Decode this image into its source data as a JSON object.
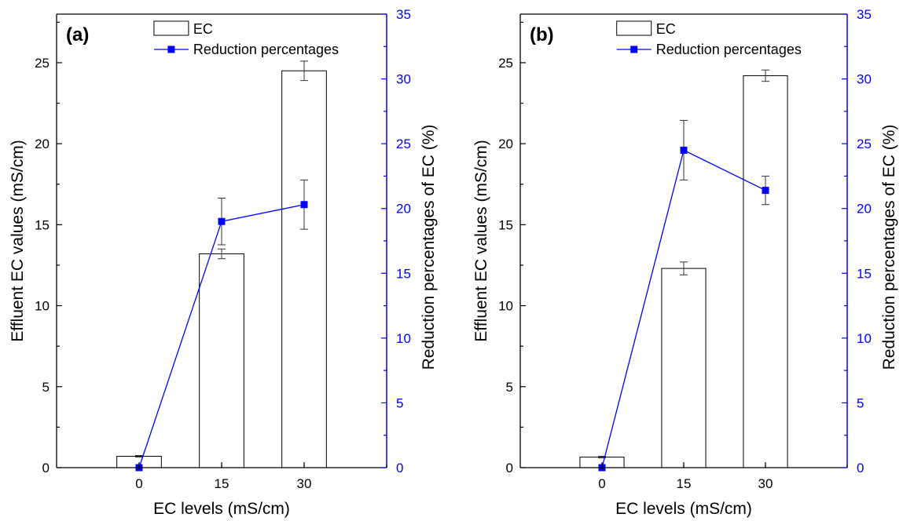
{
  "colors": {
    "axis": "#000000",
    "secondary_axis": "#0000ff",
    "bar_fill": "#ffffff",
    "bar_stroke": "#000000",
    "line": "#0000ff",
    "marker": "#0000ff"
  },
  "chart_data": [
    {
      "type": "bar",
      "panel_label": "(a)",
      "categories": [
        "0",
        "15",
        "30"
      ],
      "xlabel": "EC levels (mS/cm)",
      "ylabel": "Effluent EC values (mS/cm)",
      "y2label": "Reduction percentages of EC (%)",
      "ylim": [
        0,
        28
      ],
      "y2lim": [
        0,
        35
      ],
      "yticks": [
        0,
        5,
        10,
        15,
        20,
        25
      ],
      "y2ticks": [
        0,
        5,
        10,
        15,
        20,
        25,
        30,
        35
      ],
      "legend": [
        "EC",
        "Reduction percentages"
      ],
      "legend_position": "top-right",
      "series": [
        {
          "name": "EC",
          "type": "bar",
          "axis": "left",
          "values": [
            0.7,
            13.2,
            24.5
          ],
          "errors": [
            0.05,
            0.3,
            0.6
          ]
        },
        {
          "name": "Reduction percentages",
          "type": "line",
          "axis": "right",
          "values": [
            0,
            19.0,
            20.3
          ],
          "errors": [
            0,
            1.8,
            1.9
          ]
        }
      ]
    },
    {
      "type": "bar",
      "panel_label": "(b)",
      "categories": [
        "0",
        "15",
        "30"
      ],
      "xlabel": "EC levels (mS/cm)",
      "ylabel": "Effluent EC values (mS/cm)",
      "y2label": "Reduction percentages of EC (%)",
      "ylim": [
        0,
        28
      ],
      "y2lim": [
        0,
        35
      ],
      "yticks": [
        0,
        5,
        10,
        15,
        20,
        25
      ],
      "y2ticks": [
        0,
        5,
        10,
        15,
        20,
        25,
        30,
        35
      ],
      "legend": [
        "EC",
        "Reduction percentages"
      ],
      "legend_position": "top-right",
      "series": [
        {
          "name": "EC",
          "type": "bar",
          "axis": "left",
          "values": [
            0.65,
            12.3,
            24.2
          ],
          "errors": [
            0.05,
            0.4,
            0.35
          ]
        },
        {
          "name": "Reduction percentages",
          "type": "line",
          "axis": "right",
          "values": [
            0,
            24.5,
            21.4
          ],
          "errors": [
            0,
            2.3,
            1.1
          ]
        }
      ]
    }
  ]
}
